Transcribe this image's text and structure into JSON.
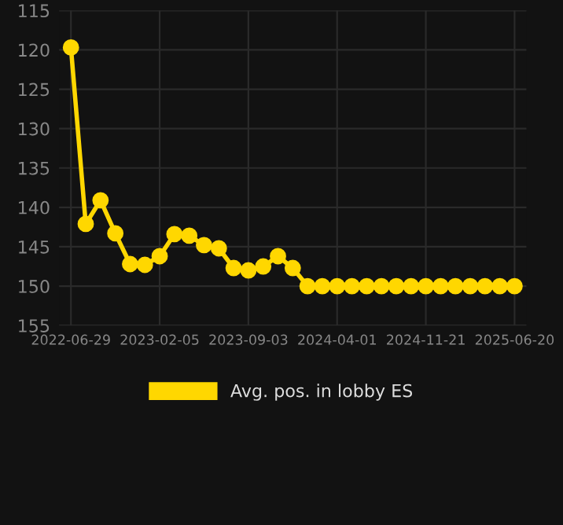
{
  "chart_data": {
    "type": "line",
    "categories": [
      "2022-06-29",
      null,
      null,
      null,
      null,
      null,
      "2023-02-05",
      null,
      null,
      null,
      null,
      null,
      "2023-09-03",
      null,
      null,
      null,
      null,
      null,
      "2024-04-01",
      null,
      null,
      null,
      null,
      null,
      "2024-11-21",
      null,
      null,
      null,
      null,
      null,
      "2025-06-20"
    ],
    "series": [
      {
        "name": "Avg. pos. in lobby ES",
        "color": "#ffd700",
        "values": [
          119.7,
          142.1,
          139.1,
          143.3,
          147.2,
          147.3,
          146.2,
          143.4,
          143.6,
          144.8,
          145.2,
          147.7,
          148.0,
          147.5,
          146.2,
          147.7,
          150,
          150,
          150,
          150,
          150,
          150,
          150,
          150,
          150,
          150,
          150,
          150,
          150,
          150,
          150
        ]
      }
    ],
    "ylim": [
      155,
      115
    ],
    "yticks": [
      115,
      120,
      125,
      130,
      135,
      140,
      145,
      150,
      155
    ],
    "grid": true,
    "legend": "bottom",
    "marker": "circle",
    "line_style": "solid"
  }
}
